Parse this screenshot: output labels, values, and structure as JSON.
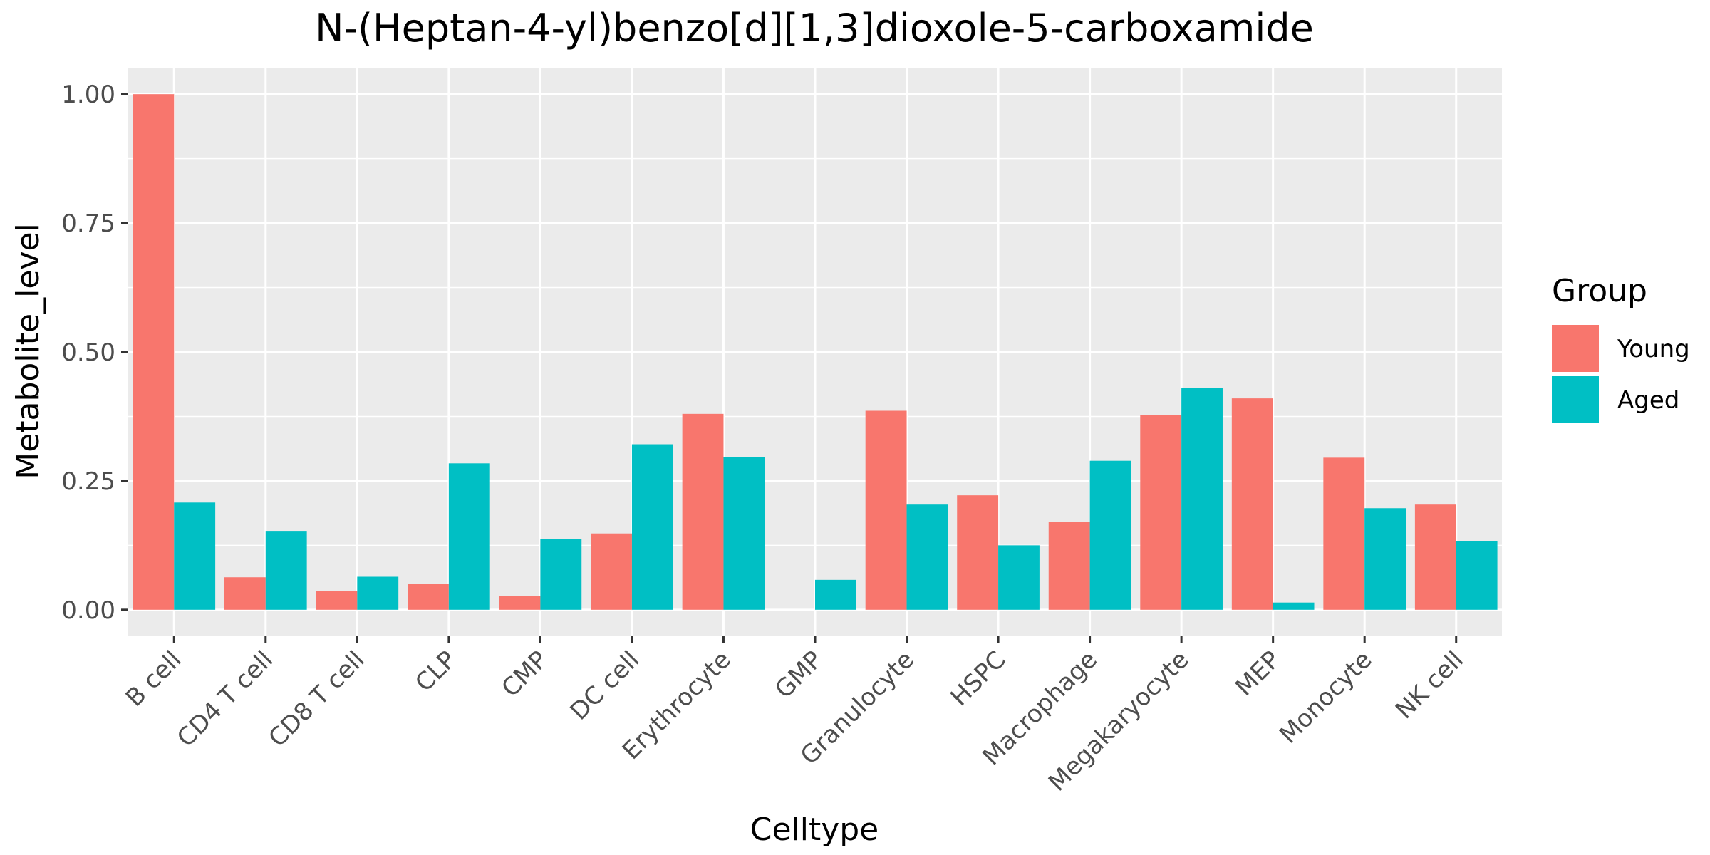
{
  "chart_data": {
    "type": "bar",
    "title": "N-(Heptan-4-yl)benzo[d][1,3]dioxole-5-carboxamide",
    "xlabel": "Celltype",
    "ylabel": "Metabolite_level",
    "ylim": [
      -0.05,
      1.05
    ],
    "yticks": [
      "0.00",
      "0.25",
      "0.50",
      "0.75",
      "1.00"
    ],
    "ytick_values": [
      0,
      0.25,
      0.5,
      0.75,
      1.0
    ],
    "categories": [
      "B cell",
      "CD4 T cell",
      "CD8 T cell",
      "CLP",
      "CMP",
      "DC cell",
      "Erythrocyte",
      "GMP",
      "Granulocyte",
      "HSPC",
      "Macrophage",
      "Megakaryocyte",
      "MEP",
      "Monocyte",
      "NK cell"
    ],
    "series": [
      {
        "name": "Young",
        "color": "#F8766D",
        "values": [
          1.0,
          0.063,
          0.037,
          0.05,
          0.027,
          0.148,
          0.38,
          null,
          0.386,
          0.222,
          0.171,
          0.378,
          0.41,
          0.295,
          0.204
        ]
      },
      {
        "name": "Aged",
        "color": "#00BFC4",
        "values": [
          0.208,
          0.153,
          0.064,
          0.284,
          0.137,
          0.321,
          0.296,
          0.058,
          0.204,
          0.125,
          0.289,
          0.43,
          0.014,
          0.197,
          0.133
        ]
      }
    ],
    "legend": {
      "title": "Group",
      "position": "right"
    },
    "grid": true,
    "panel_background": "#EBEBEB",
    "grid_color": "#FFFFFF"
  }
}
